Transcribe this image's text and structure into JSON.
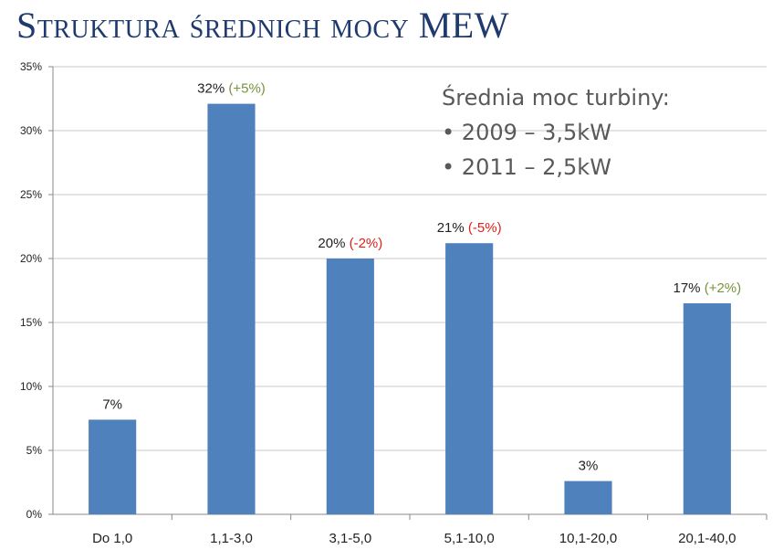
{
  "title": "Struktura średnich mocy MEW",
  "annotation": {
    "heading": "Średnia moc turbiny:",
    "items": [
      "2009 – 3,5kW",
      "2011 – 2,5kW"
    ]
  },
  "colors": {
    "bar": "#4f81bd",
    "positive_change": "#77933c",
    "negative_change": "#e0201a",
    "title": "#1f3a6e"
  },
  "chart_data": {
    "type": "bar",
    "categories": [
      "Do 1,0",
      "1,1-3,0",
      "3,1-5,0",
      "5,1-10,0",
      "10,1-20,0",
      "20,1-40,0"
    ],
    "values": [
      7.4,
      32.1,
      20.0,
      21.2,
      2.6,
      16.5
    ],
    "data_labels": [
      "7%",
      "32%",
      "20%",
      "21%",
      "3%",
      "17%"
    ],
    "change_labels": [
      "",
      "(+5%)",
      "(-2%)",
      "(-5%)",
      "",
      "(+2%)"
    ],
    "ylim": [
      0,
      35
    ],
    "yticks": [
      "0%",
      "5%",
      "10%",
      "15%",
      "20%",
      "25%",
      "30%",
      "35%"
    ],
    "grid": true
  }
}
